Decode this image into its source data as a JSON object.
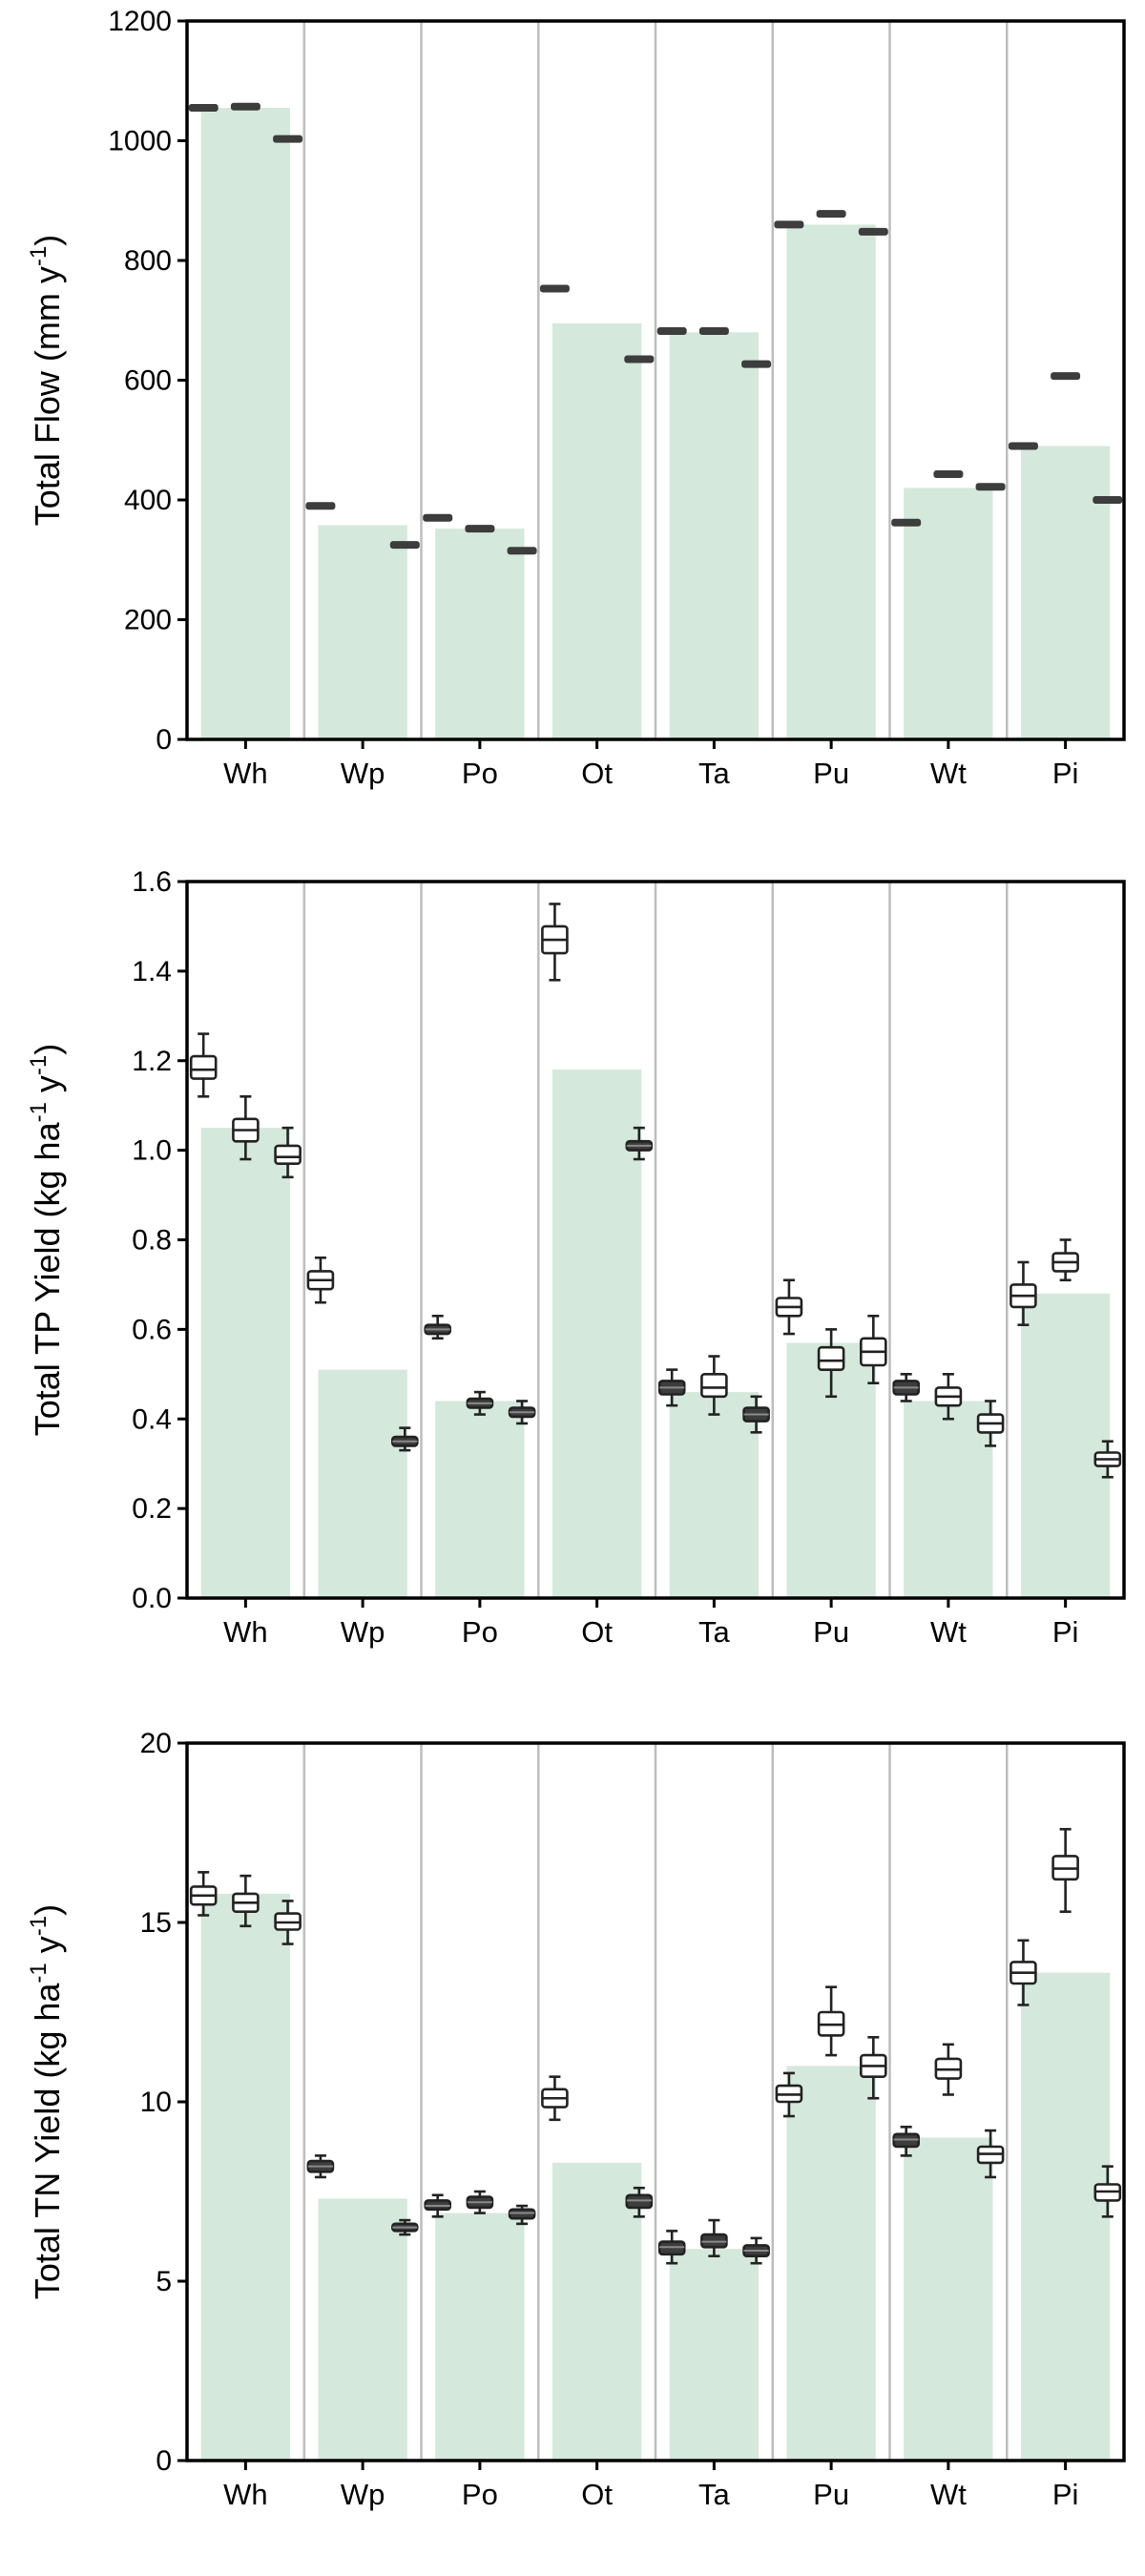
{
  "colors": {
    "bar": "#d5e8dc",
    "box_open_fill": "#ffffff",
    "box_filled": "#3d3d3d",
    "separator": "#bdbdbd",
    "axis": "#000000"
  },
  "chart_data": [
    {
      "type": "bar",
      "overlay": "point-estimates",
      "ylabel": "Total Flow (mm y",
      "ylabel_sup": "-1",
      "ylabel_tail": ")",
      "ylim": [
        0,
        1200
      ],
      "yticks": [
        0,
        200,
        400,
        600,
        800,
        1000,
        1200
      ],
      "ytick_labels": [
        "0",
        "200",
        "400",
        "600",
        "800",
        "1000",
        "1200"
      ],
      "categories": [
        "Wh",
        "Wp",
        "Po",
        "Ot",
        "Ta",
        "Pu",
        "Wt",
        "Pi"
      ],
      "bar_values": [
        1055,
        358,
        352,
        695,
        680,
        860,
        420,
        490
      ],
      "points": [
        [
          {
            "style": "open",
            "value": 1055
          },
          {
            "style": "open",
            "value": 1057
          },
          {
            "style": "filled",
            "value": 1003
          }
        ],
        [
          {
            "style": "open",
            "value": 390
          },
          null,
          {
            "style": "filled",
            "value": 325
          }
        ],
        [
          {
            "style": "open",
            "value": 370
          },
          {
            "style": "filled",
            "value": 352
          },
          {
            "style": "filled",
            "value": 315
          }
        ],
        [
          {
            "style": "open",
            "value": 753
          },
          null,
          {
            "style": "filled",
            "value": 635
          }
        ],
        [
          {
            "style": "open",
            "value": 682
          },
          {
            "style": "open",
            "value": 682
          },
          {
            "style": "filled",
            "value": 627
          }
        ],
        [
          {
            "style": "open",
            "value": 860
          },
          {
            "style": "open",
            "value": 878
          },
          {
            "style": "filled",
            "value": 848
          }
        ],
        [
          {
            "style": "filled",
            "value": 362
          },
          {
            "style": "open",
            "value": 443
          },
          {
            "style": "filled",
            "value": 422
          }
        ],
        [
          {
            "style": "open",
            "value": 490
          },
          {
            "style": "open",
            "value": 607
          },
          {
            "style": "filled",
            "value": 400
          }
        ]
      ]
    },
    {
      "type": "bar",
      "overlay": "boxplot",
      "ylabel": "Total TP Yield  (kg ha",
      "ylabel_sup": "-1",
      "ylabel_mid": " y",
      "ylabel_sup2": "-1",
      "ylabel_tail": ")",
      "ylim": [
        0,
        1.6
      ],
      "yticks": [
        0,
        0.2,
        0.4,
        0.6,
        0.8,
        1.0,
        1.2,
        1.4,
        1.6
      ],
      "ytick_labels": [
        "0.0",
        "0.2",
        "0.4",
        "0.6",
        "0.8",
        "1.0",
        "1.2",
        "1.4",
        "1.6"
      ],
      "categories": [
        "Wh",
        "Wp",
        "Po",
        "Ot",
        "Ta",
        "Pu",
        "Wt",
        "Pi"
      ],
      "bar_values": [
        1.05,
        0.51,
        0.44,
        1.18,
        0.46,
        0.57,
        0.44,
        0.68
      ],
      "boxes": [
        [
          {
            "style": "open",
            "min": 1.12,
            "q1": 1.16,
            "median": 1.18,
            "q3": 1.21,
            "max": 1.26
          },
          {
            "style": "open",
            "min": 0.98,
            "q1": 1.02,
            "median": 1.045,
            "q3": 1.07,
            "max": 1.12
          },
          {
            "style": "open",
            "min": 0.94,
            "q1": 0.97,
            "median": 0.985,
            "q3": 1.01,
            "max": 1.05
          }
        ],
        [
          {
            "style": "open",
            "min": 0.66,
            "q1": 0.69,
            "median": 0.71,
            "q3": 0.73,
            "max": 0.76
          },
          null,
          {
            "style": "filled",
            "min": 0.33,
            "q1": 0.34,
            "median": 0.35,
            "q3": 0.36,
            "max": 0.38
          }
        ],
        [
          {
            "style": "filled",
            "min": 0.58,
            "q1": 0.59,
            "median": 0.6,
            "q3": 0.61,
            "max": 0.63
          },
          {
            "style": "filled",
            "min": 0.41,
            "q1": 0.425,
            "median": 0.435,
            "q3": 0.445,
            "max": 0.46
          },
          {
            "style": "filled",
            "min": 0.39,
            "q1": 0.405,
            "median": 0.415,
            "q3": 0.425,
            "max": 0.44
          }
        ],
        [
          {
            "style": "open",
            "min": 1.38,
            "q1": 1.44,
            "median": 1.47,
            "q3": 1.5,
            "max": 1.55
          },
          null,
          {
            "style": "filled",
            "min": 0.98,
            "q1": 1.0,
            "median": 1.01,
            "q3": 1.02,
            "max": 1.05
          }
        ],
        [
          {
            "style": "filled",
            "min": 0.43,
            "q1": 0.455,
            "median": 0.47,
            "q3": 0.485,
            "max": 0.51
          },
          {
            "style": "open",
            "min": 0.41,
            "q1": 0.45,
            "median": 0.47,
            "q3": 0.5,
            "max": 0.54
          },
          {
            "style": "filled",
            "min": 0.37,
            "q1": 0.395,
            "median": 0.41,
            "q3": 0.425,
            "max": 0.45
          }
        ],
        [
          {
            "style": "open",
            "min": 0.59,
            "q1": 0.63,
            "median": 0.65,
            "q3": 0.67,
            "max": 0.71
          },
          {
            "style": "open",
            "min": 0.45,
            "q1": 0.51,
            "median": 0.53,
            "q3": 0.56,
            "max": 0.6
          },
          {
            "style": "open",
            "min": 0.48,
            "q1": 0.52,
            "median": 0.55,
            "q3": 0.58,
            "max": 0.63
          }
        ],
        [
          {
            "style": "filled",
            "min": 0.44,
            "q1": 0.455,
            "median": 0.47,
            "q3": 0.485,
            "max": 0.5
          },
          {
            "style": "open",
            "min": 0.4,
            "q1": 0.43,
            "median": 0.45,
            "q3": 0.47,
            "max": 0.5
          },
          {
            "style": "open",
            "min": 0.34,
            "q1": 0.37,
            "median": 0.39,
            "q3": 0.41,
            "max": 0.44
          }
        ],
        [
          {
            "style": "open",
            "min": 0.61,
            "q1": 0.65,
            "median": 0.675,
            "q3": 0.7,
            "max": 0.75
          },
          {
            "style": "open",
            "min": 0.71,
            "q1": 0.73,
            "median": 0.75,
            "q3": 0.77,
            "max": 0.8
          },
          {
            "style": "open",
            "min": 0.27,
            "q1": 0.295,
            "median": 0.31,
            "q3": 0.325,
            "max": 0.35
          }
        ]
      ]
    },
    {
      "type": "bar",
      "overlay": "boxplot",
      "ylabel": "Total TN Yield  (kg ha",
      "ylabel_sup": "-1",
      "ylabel_mid": " y",
      "ylabel_sup2": "-1",
      "ylabel_tail": ")",
      "ylim": [
        0,
        20
      ],
      "yticks": [
        0,
        5,
        10,
        15,
        20
      ],
      "ytick_labels": [
        "0",
        "5",
        "10",
        "15",
        "20"
      ],
      "categories": [
        "Wh",
        "Wp",
        "Po",
        "Ot",
        "Ta",
        "Pu",
        "Wt",
        "Pi"
      ],
      "bar_values": [
        15.8,
        7.3,
        6.9,
        8.3,
        5.9,
        11.0,
        9.0,
        13.6
      ],
      "boxes": [
        [
          {
            "style": "open",
            "min": 15.2,
            "q1": 15.5,
            "median": 15.75,
            "q3": 16.0,
            "max": 16.4
          },
          {
            "style": "open",
            "min": 14.9,
            "q1": 15.3,
            "median": 15.55,
            "q3": 15.8,
            "max": 16.3
          },
          {
            "style": "open",
            "min": 14.4,
            "q1": 14.8,
            "median": 15.0,
            "q3": 15.25,
            "max": 15.6
          }
        ],
        [
          {
            "style": "filled",
            "min": 7.9,
            "q1": 8.05,
            "median": 8.2,
            "q3": 8.35,
            "max": 8.5
          },
          null,
          {
            "style": "filled",
            "min": 6.3,
            "q1": 6.4,
            "median": 6.5,
            "q3": 6.6,
            "max": 6.7
          }
        ],
        [
          {
            "style": "filled",
            "min": 6.8,
            "q1": 7.0,
            "median": 7.1,
            "q3": 7.25,
            "max": 7.4
          },
          {
            "style": "filled",
            "min": 6.9,
            "q1": 7.05,
            "median": 7.2,
            "q3": 7.35,
            "max": 7.5
          },
          {
            "style": "filled",
            "min": 6.6,
            "q1": 6.75,
            "median": 6.9,
            "q3": 7.0,
            "max": 7.1
          }
        ],
        [
          {
            "style": "open",
            "min": 9.5,
            "q1": 9.85,
            "median": 10.1,
            "q3": 10.35,
            "max": 10.7
          },
          null,
          {
            "style": "filled",
            "min": 6.8,
            "q1": 7.05,
            "median": 7.25,
            "q3": 7.4,
            "max": 7.6
          }
        ],
        [
          {
            "style": "filled",
            "min": 5.5,
            "q1": 5.75,
            "median": 5.95,
            "q3": 6.1,
            "max": 6.4
          },
          {
            "style": "filled",
            "min": 5.7,
            "q1": 5.95,
            "median": 6.1,
            "q3": 6.3,
            "max": 6.7
          },
          {
            "style": "filled",
            "min": 5.5,
            "q1": 5.7,
            "median": 5.85,
            "q3": 6.0,
            "max": 6.2
          }
        ],
        [
          {
            "style": "open",
            "min": 9.6,
            "q1": 10.0,
            "median": 10.2,
            "q3": 10.45,
            "max": 10.8
          },
          {
            "style": "open",
            "min": 11.3,
            "q1": 11.85,
            "median": 12.15,
            "q3": 12.5,
            "max": 13.2
          },
          {
            "style": "open",
            "min": 10.1,
            "q1": 10.7,
            "median": 11.0,
            "q3": 11.3,
            "max": 11.8
          }
        ],
        [
          {
            "style": "filled",
            "min": 8.5,
            "q1": 8.75,
            "median": 8.95,
            "q3": 9.1,
            "max": 9.3
          },
          {
            "style": "open",
            "min": 10.2,
            "q1": 10.65,
            "median": 10.9,
            "q3": 11.2,
            "max": 11.6
          },
          {
            "style": "open",
            "min": 7.9,
            "q1": 8.3,
            "median": 8.55,
            "q3": 8.75,
            "max": 9.2
          }
        ],
        [
          {
            "style": "open",
            "min": 12.7,
            "q1": 13.3,
            "median": 13.6,
            "q3": 13.9,
            "max": 14.5
          },
          {
            "style": "open",
            "min": 15.3,
            "q1": 16.2,
            "median": 16.5,
            "q3": 16.85,
            "max": 17.6
          },
          {
            "style": "open",
            "min": 6.8,
            "q1": 7.25,
            "median": 7.5,
            "q3": 7.7,
            "max": 8.2
          }
        ]
      ]
    }
  ]
}
